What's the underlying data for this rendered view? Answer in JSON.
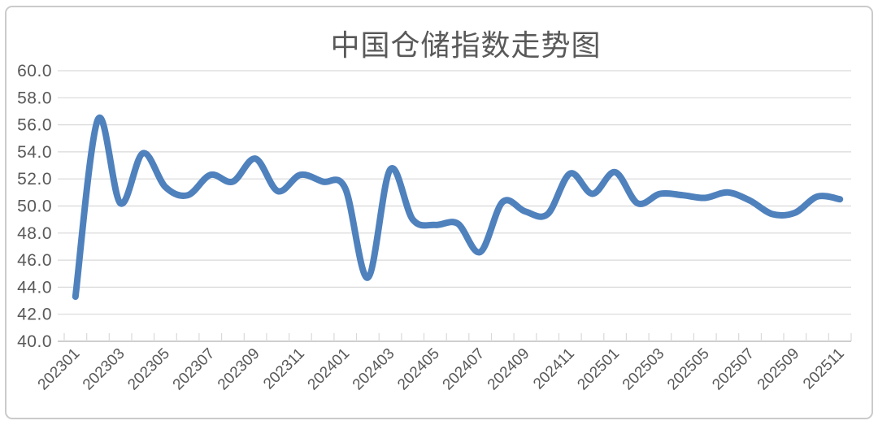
{
  "chart_data": {
    "type": "line",
    "title": "中国仓储指数走势图",
    "x": [
      "202301",
      "202302",
      "202303",
      "202304",
      "202305",
      "202306",
      "202307",
      "202308",
      "202309",
      "202310",
      "202311",
      "202312",
      "202401",
      "202402",
      "202403",
      "202404",
      "202405",
      "202406",
      "202407",
      "202408",
      "202409",
      "202410",
      "202411",
      "202412",
      "202501",
      "202502",
      "202503",
      "202504",
      "202505",
      "202506",
      "202507",
      "202508",
      "202509",
      "202510",
      "202511"
    ],
    "values": [
      43.3,
      56.4,
      50.2,
      53.9,
      51.4,
      50.8,
      52.3,
      51.8,
      53.5,
      51.1,
      52.3,
      51.8,
      51.3,
      44.7,
      52.7,
      49.0,
      48.6,
      48.7,
      46.6,
      50.3,
      49.6,
      49.4,
      52.4,
      50.9,
      52.5,
      50.2,
      50.9,
      50.8,
      50.6,
      51.0,
      50.4,
      49.4,
      49.5,
      50.7,
      50.5
    ],
    "x_tick_labels": [
      "202301",
      "202303",
      "202305",
      "202307",
      "202309",
      "202311",
      "202401",
      "202403",
      "202405",
      "202407",
      "202409",
      "202411",
      "202501",
      "202503",
      "202505",
      "202507",
      "202509",
      "202511"
    ],
    "y_tick_labels": [
      "60.0",
      "58.0",
      "56.0",
      "54.0",
      "52.0",
      "50.0",
      "48.0",
      "46.0",
      "44.0",
      "42.0",
      "40.0"
    ],
    "y_step": 2,
    "ylim": [
      40.0,
      60.0
    ],
    "grid": "horizontal",
    "legend": "none",
    "line_smoothing": true
  },
  "colors": {
    "line": "#4f81bd",
    "grid": "#d9d9d9",
    "axis_line": "#bfbfbf",
    "axis_text": "#595959",
    "title_text": "#595959",
    "border": "#cbcbcb",
    "background": "#ffffff"
  }
}
